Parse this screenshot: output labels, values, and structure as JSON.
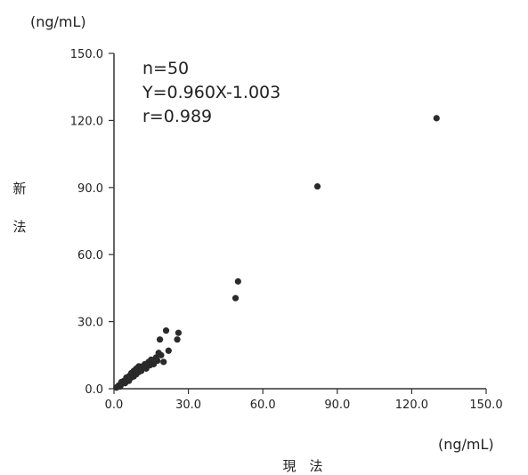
{
  "chart_data": {
    "type": "scatter",
    "y_unit": "(ng/mL)",
    "x_unit": "(ng/mL)",
    "xlabel": "現　法",
    "ylabel_chars": [
      "新",
      "法"
    ],
    "annotations": [
      "n=50",
      "Y=0.960X-1.003",
      "r=0.989"
    ],
    "xlim": [
      0,
      150
    ],
    "ylim": [
      0,
      150
    ],
    "x_ticks": [
      "0.0",
      "30.0",
      "60.0",
      "90.0",
      "120.0",
      "150.0"
    ],
    "y_ticks": [
      "0.0",
      "30.0",
      "60.0",
      "90.0",
      "120.0",
      "150.0"
    ],
    "x_tick_values": [
      0,
      30,
      60,
      90,
      120,
      150
    ],
    "y_tick_values": [
      0,
      30,
      60,
      90,
      120,
      150
    ],
    "grid": false,
    "point_color": "#2a2a2a",
    "series": [
      {
        "points": [
          [
            1.0,
            0.5
          ],
          [
            1.5,
            1.0
          ],
          [
            2.0,
            1.5
          ],
          [
            2.5,
            1.0
          ],
          [
            3.0,
            2.0
          ],
          [
            3.0,
            3.0
          ],
          [
            3.5,
            2.5
          ],
          [
            4.0,
            3.5
          ],
          [
            4.5,
            2.5
          ],
          [
            5.0,
            4.0
          ],
          [
            5.0,
            5.0
          ],
          [
            5.5,
            4.5
          ],
          [
            6.0,
            5.5
          ],
          [
            6.0,
            3.5
          ],
          [
            6.5,
            6.0
          ],
          [
            7.0,
            5.0
          ],
          [
            7.0,
            7.0
          ],
          [
            7.5,
            6.5
          ],
          [
            8.0,
            8.0
          ],
          [
            8.0,
            5.5
          ],
          [
            8.5,
            7.5
          ],
          [
            9.0,
            9.0
          ],
          [
            9.0,
            6.5
          ],
          [
            9.5,
            8.5
          ],
          [
            10.0,
            10.0
          ],
          [
            10.0,
            7.5
          ],
          [
            10.5,
            9.0
          ],
          [
            11.0,
            8.0
          ],
          [
            11.5,
            10.0
          ],
          [
            12.0,
            9.5
          ],
          [
            12.5,
            11.0
          ],
          [
            13.0,
            9.0
          ],
          [
            14.0,
            12.0
          ],
          [
            14.5,
            10.5
          ],
          [
            15.0,
            13.0
          ],
          [
            16.0,
            11.0
          ],
          [
            17.0,
            14.0
          ],
          [
            17.5,
            12.5
          ],
          [
            18.0,
            16.0
          ],
          [
            18.5,
            22.0
          ],
          [
            19.0,
            15.0
          ],
          [
            20.0,
            12.0
          ],
          [
            21.0,
            26.0
          ],
          [
            22.0,
            17.0
          ],
          [
            25.5,
            22.0
          ],
          [
            26.0,
            25.0
          ],
          [
            49.0,
            40.5
          ],
          [
            50.0,
            48.0
          ],
          [
            82.0,
            90.5
          ],
          [
            130.0,
            121.0
          ]
        ]
      }
    ]
  }
}
